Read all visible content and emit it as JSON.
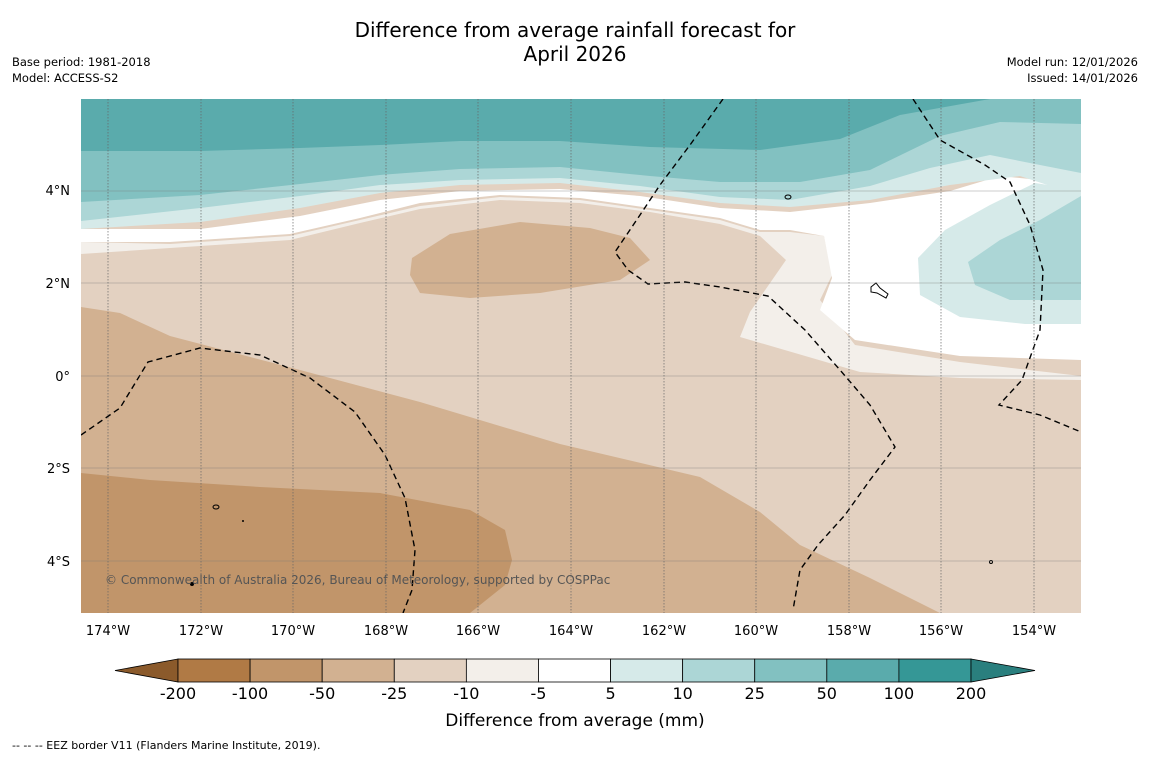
{
  "title_line1": "Difference from average rainfall forecast for",
  "title_line2": "April 2026",
  "base_period": "Base period: 1981-2018",
  "model": "Model: ACCESS-S2",
  "model_run": "Model run: 12/01/2026",
  "issued": "Issued: 14/01/2026",
  "copyright": "© Commonwealth of Australia 2026, Bureau of Meteorology, supported by COSPPac",
  "lat_labels": [
    "4°N",
    "2°N",
    "0°",
    "2°S",
    "4°S"
  ],
  "lon_labels": [
    "174°W",
    "172°W",
    "170°W",
    "168°W",
    "166°W",
    "164°W",
    "162°W",
    "160°W",
    "158°W",
    "156°W",
    "154°W"
  ],
  "colorbar": {
    "ticks": [
      "-200",
      "-100",
      "-50",
      "-25",
      "-10",
      "-5",
      "5",
      "10",
      "25",
      "50",
      "100",
      "200"
    ],
    "colors": [
      "#8b5a2b",
      "#b07a45",
      "#c1956a",
      "#d2b191",
      "#e3d1c1",
      "#f3efea",
      "#ffffff",
      "#d6eae9",
      "#acd6d6",
      "#82c1c1",
      "#5aabac",
      "#359796",
      "#2a7f7e"
    ],
    "label": "Difference from average (mm)"
  },
  "footnote": "--  --  -- EEZ border V11 (Flanders Marine Institute, 2019)."
}
